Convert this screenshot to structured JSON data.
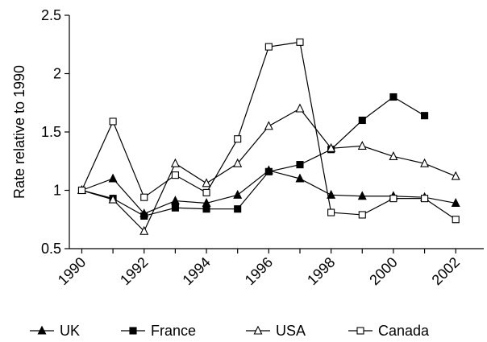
{
  "chart_data": {
    "type": "line",
    "title": "",
    "xlabel": "",
    "ylabel": "Rate relative to 1990",
    "ylim": [
      0.5,
      2.5
    ],
    "y_ticks": [
      "0.5",
      "1",
      "1.5",
      "2",
      "2.5"
    ],
    "x_tick_labels": [
      "1990",
      "1992",
      "1994",
      "1996",
      "1998",
      "2000",
      "2002"
    ],
    "x": [
      1990,
      1991,
      1992,
      1993,
      1994,
      1995,
      1996,
      1997,
      1998,
      1999,
      2000,
      2001,
      2002
    ],
    "grid": false,
    "legend_position": "bottom",
    "series": [
      {
        "name": "UK",
        "marker": "filled-triangle",
        "values": [
          1.0,
          1.1,
          0.8,
          0.91,
          0.89,
          0.96,
          1.17,
          1.1,
          0.96,
          0.95,
          0.95,
          0.94,
          0.89
        ]
      },
      {
        "name": "France",
        "marker": "filled-square",
        "values": [
          1.0,
          0.93,
          0.78,
          0.85,
          0.84,
          0.84,
          1.16,
          1.22,
          1.35,
          1.6,
          1.8,
          1.64,
          null
        ]
      },
      {
        "name": "USA",
        "marker": "open-triangle",
        "values": [
          1.0,
          0.92,
          0.65,
          1.23,
          1.06,
          1.23,
          1.55,
          1.7,
          1.36,
          1.38,
          1.29,
          1.23,
          1.12
        ]
      },
      {
        "name": "Canada",
        "marker": "open-square",
        "values": [
          1.0,
          1.59,
          0.94,
          1.13,
          0.98,
          1.44,
          2.23,
          2.27,
          0.81,
          0.79,
          0.93,
          0.93,
          0.75
        ]
      }
    ]
  }
}
